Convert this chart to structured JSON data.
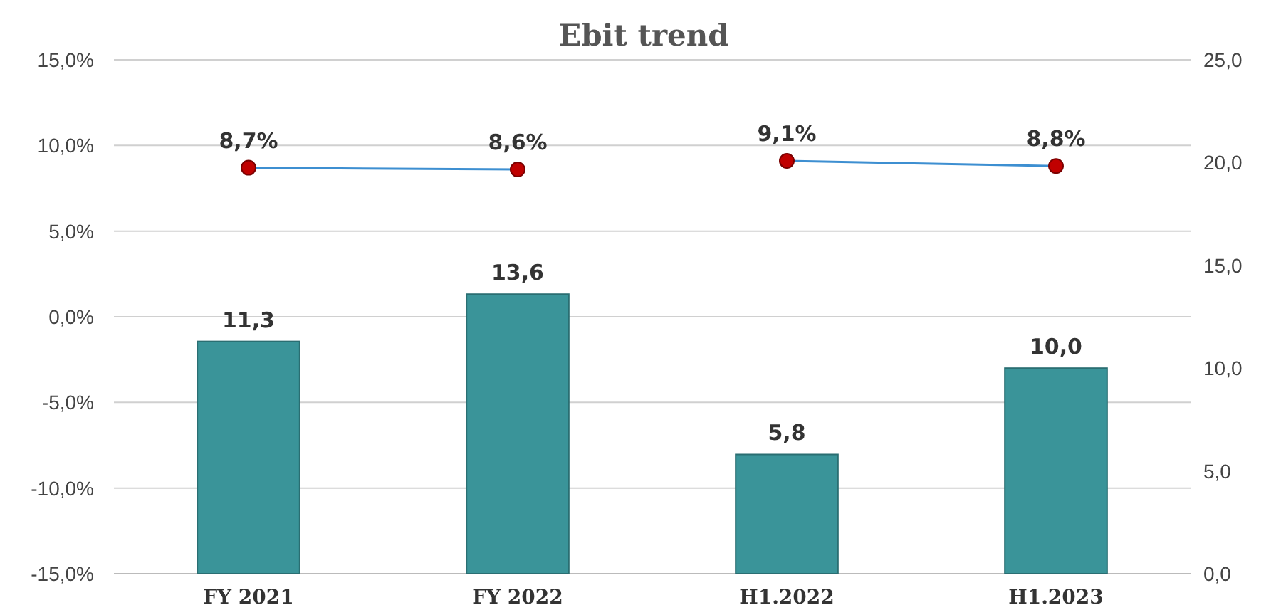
{
  "chart_data": {
    "type": "bar",
    "title": "Ebit trend",
    "categories": [
      "FY 2021",
      "FY 2022",
      "H1.2022",
      "H1.2023"
    ],
    "series": [
      {
        "axis": "y2",
        "color": "#3a9499",
        "values": [
          11.3,
          13.6,
          5.8,
          10.0
        ],
        "value_labels": [
          "11,3",
          "13,6",
          "5,8",
          "10,0"
        ]
      },
      {
        "type": "line",
        "axis": "y",
        "color": "#3d8fd1",
        "marker": "circle",
        "values": [
          8.7,
          8.6,
          null,
          null
        ],
        "value_labels": [
          "8,7%",
          "8,6%",
          null,
          null
        ]
      },
      {
        "type": "line",
        "axis": "y",
        "color": "#3d8fd1",
        "marker": "circle",
        "values": [
          null,
          null,
          9.1,
          8.8
        ],
        "value_labels": [
          null,
          null,
          "9,1%",
          "8,8%"
        ]
      }
    ],
    "ylim": [
      -15,
      15
    ],
    "yticks": [
      {
        "value": -15,
        "label": "-15,0%"
      },
      {
        "value": -10,
        "label": "-10,0%"
      },
      {
        "value": -5,
        "label": "-5,0%"
      },
      {
        "value": 0,
        "label": "0,0%"
      },
      {
        "value": 5,
        "label": "5,0%"
      },
      {
        "value": 10,
        "label": "10,0%"
      },
      {
        "value": 15,
        "label": "15,0%"
      }
    ],
    "y2lim": [
      0,
      25
    ],
    "y2ticks": [
      {
        "value": 0,
        "label": "0,0"
      },
      {
        "value": 5,
        "label": "5,0"
      },
      {
        "value": 10,
        "label": "10,0"
      },
      {
        "value": 15,
        "label": "15,0"
      },
      {
        "value": 20,
        "label": "20,0"
      },
      {
        "value": 25,
        "label": "25,0"
      }
    ],
    "grid": "y"
  }
}
